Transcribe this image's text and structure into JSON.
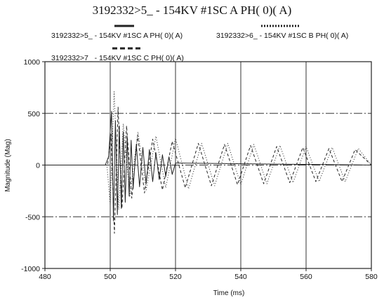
{
  "chart_data": {
    "type": "line",
    "title": "3192332>5_ - 154KV #1SC A PH( 0)( A)",
    "xlabel": "Time (ms)",
    "ylabel": "Magnitude (Mag)",
    "xlim": [
      480,
      580
    ],
    "ylim": [
      -1000,
      1000
    ],
    "x_ticks": [
      480,
      500,
      520,
      540,
      560,
      580
    ],
    "y_ticks": [
      1000,
      500,
      0,
      -500,
      -1000
    ],
    "grid": true,
    "legend_position": "top",
    "series": [
      {
        "name": "3192332>5_ - 154KV #1SC A PH( 0)( A)",
        "style": "solid",
        "color": "#222222",
        "x": [
          480,
          498.5,
          499.5,
          500.4,
          501.0,
          501.6,
          502.2,
          502.8,
          503.4,
          504.0,
          504.6,
          505.2,
          505.8,
          506.4,
          507.0,
          508.0,
          509.0,
          510.0,
          511.0,
          512.0,
          513.0,
          514.0,
          515.0,
          516.0,
          517.0,
          518.0,
          519.0,
          520.0,
          580
        ],
        "y": [
          0,
          0,
          80,
          520,
          -540,
          430,
          -480,
          380,
          -420,
          320,
          -360,
          280,
          -300,
          240,
          -230,
          200,
          -210,
          170,
          -180,
          150,
          -160,
          120,
          -140,
          100,
          -110,
          80,
          -90,
          20,
          0
        ]
      },
      {
        "name": "3192332>6_ - 154KV #1SC B PH( 0)( A)",
        "style": "dotted",
        "color": "#222222",
        "x": [
          480,
          499.0,
          500.0,
          501.2,
          502.6,
          504.0,
          506.0,
          508.5,
          511.0,
          514.0,
          517.0,
          520.0,
          524.0,
          528.0,
          532.0,
          536.0,
          540.0,
          544.0,
          548.0,
          552.0,
          556.0,
          560.0,
          564.0,
          568.0,
          572.0,
          576.0,
          580.0
        ],
        "y": [
          0,
          0,
          -380,
          710,
          -430,
          400,
          -300,
          320,
          -240,
          280,
          -220,
          260,
          -230,
          210,
          -200,
          210,
          -190,
          200,
          -180,
          190,
          -170,
          180,
          -160,
          170,
          -160,
          160,
          0
        ]
      },
      {
        "name": "3192332>7_ - 154KV #1SC C PH( 0)( A)",
        "style": "dashed",
        "color": "#222222",
        "x": [
          480,
          499.2,
          500.2,
          501.3,
          502.4,
          503.6,
          505.0,
          506.6,
          508.4,
          510.5,
          513.0,
          516.0,
          519.0,
          523.0,
          527.0,
          531.0,
          535.0,
          539.0,
          543.0,
          547.0,
          551.0,
          555.0,
          559.0,
          563.0,
          567.0,
          571.0,
          575.0,
          580.0
        ],
        "y": [
          0,
          0,
          300,
          -660,
          560,
          -420,
          380,
          -320,
          290,
          -270,
          250,
          -240,
          230,
          -220,
          210,
          -200,
          200,
          -190,
          190,
          -180,
          180,
          -170,
          170,
          -160,
          160,
          -160,
          150,
          0
        ]
      }
    ]
  }
}
